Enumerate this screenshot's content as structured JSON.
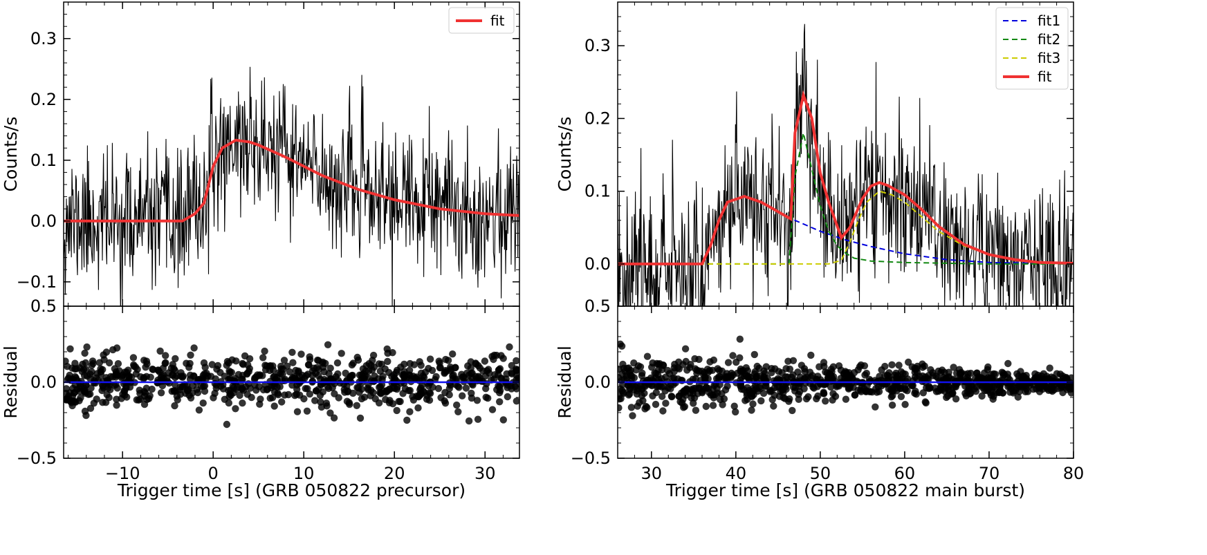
{
  "chart_data": [
    {
      "type": "line",
      "panel": "left-top",
      "title": "",
      "xlabel": "",
      "ylabel": "Counts/s",
      "xlim": [
        -16.5,
        33.8
      ],
      "ylim": [
        -0.14,
        0.36
      ],
      "xticks": [
        -10,
        0,
        10,
        20,
        30
      ],
      "yticks": [
        -0.1,
        0.0,
        0.1,
        0.2,
        0.3
      ],
      "ytick_labels": [
        "−0.1",
        "0.0",
        "0.1",
        "0.2",
        "0.3"
      ],
      "legend": {
        "placement": "top-right",
        "entries": [
          "fit"
        ]
      },
      "series": [
        {
          "name": "data",
          "style": "line",
          "color": "#000000",
          "envelope": {
            "x": [
              -16.5,
              -10,
              -4,
              -3.4,
              -1,
              0,
              1,
              2.5,
              5,
              8,
              12,
              16,
              20,
              25,
              30,
              33.8
            ],
            "y": [
              0,
              0,
              0,
              0,
              0.03,
              0.09,
              0.12,
              0.133,
              0.125,
              0.105,
              0.075,
              0.052,
              0.035,
              0.022,
              0.014,
              0.01
            ]
          },
          "noise_sd": 0.055
        },
        {
          "name": "fit",
          "style": "line",
          "color": "#f03232",
          "x": [
            -16.5,
            -10,
            -4,
            -3.4,
            -2,
            -1,
            0,
            1,
            2.5,
            4,
            5,
            8,
            12,
            16,
            20,
            25,
            30,
            33.8
          ],
          "y": [
            0,
            0,
            0,
            0,
            0.012,
            0.03,
            0.09,
            0.12,
            0.133,
            0.13,
            0.125,
            0.105,
            0.075,
            0.052,
            0.035,
            0.02,
            0.012,
            0.009
          ]
        }
      ]
    },
    {
      "type": "scatter",
      "panel": "left-bottom",
      "xlabel": "Trigger time [s] (GRB 050822 precursor)",
      "ylabel": "Residual",
      "xlim": [
        -16.5,
        33.8
      ],
      "ylim": [
        -0.5,
        0.5
      ],
      "xticks": [
        -10,
        0,
        10,
        20,
        30
      ],
      "xtick_labels": [
        "−10",
        "0",
        "10",
        "20",
        "30"
      ],
      "yticks": [
        -0.5,
        0.0,
        0.5
      ],
      "ytick_labels": [
        "−0.5",
        "0.0",
        "0.5"
      ],
      "series": [
        {
          "name": "residual",
          "style": "scatter",
          "color": "#000000",
          "n_points": 800,
          "x_range": [
            -16.5,
            33.8
          ],
          "spread": 0.085
        },
        {
          "name": "zero line",
          "style": "line",
          "color": "#1111ee",
          "x": [
            -16.5,
            33.8
          ],
          "y": [
            0,
            0
          ]
        }
      ]
    },
    {
      "type": "line",
      "panel": "right-top",
      "title": "",
      "xlabel": "",
      "ylabel": "Counts/s",
      "xlim": [
        26,
        80
      ],
      "ylim": [
        -0.058,
        0.36
      ],
      "yticks": [
        0.0,
        0.1,
        0.2,
        0.3
      ],
      "ytick_labels": [
        "0.0",
        "0.1",
        "0.2",
        "0.3"
      ],
      "legend": {
        "placement": "top-right",
        "entries": [
          "fit1",
          "fit2",
          "fit3",
          "fit"
        ]
      },
      "series": [
        {
          "name": "data",
          "style": "line",
          "color": "#000000",
          "envelope": {
            "x": [
              26,
              35,
              36,
              38,
              41,
              44,
              46.5,
              47.5,
              48,
              49,
              50,
              51,
              52.5,
              54,
              56,
              57,
              58,
              60,
              63,
              66,
              70,
              75,
              80
            ],
            "y": [
              0,
              0,
              0,
              0.06,
              0.093,
              0.08,
              0.065,
              0.21,
              0.25,
              0.16,
              0.1,
              0.06,
              0.04,
              0.07,
              0.105,
              0.112,
              0.108,
              0.09,
              0.06,
              0.035,
              0.015,
              0.005,
              0.002
            ]
          },
          "noise_sd": 0.055
        },
        {
          "name": "fit1",
          "style": "dashed",
          "color": "#0000dd",
          "x": [
            26,
            36,
            37,
            38,
            39,
            41,
            43,
            45,
            47,
            50,
            53,
            56,
            60,
            65,
            70,
            75,
            80
          ],
          "y": [
            0,
            0,
            0.025,
            0.06,
            0.085,
            0.093,
            0.085,
            0.072,
            0.06,
            0.045,
            0.033,
            0.024,
            0.014,
            0.006,
            0.002,
            0.001,
            0
          ]
        },
        {
          "name": "fit2",
          "style": "dashed",
          "color": "#118811",
          "x": [
            26,
            46.3,
            47,
            48,
            49,
            50,
            51,
            52,
            53,
            54,
            56,
            60,
            65,
            70,
            80
          ],
          "y": [
            0,
            0,
            0.12,
            0.18,
            0.13,
            0.08,
            0.045,
            0.025,
            0.015,
            0.008,
            0.004,
            0.002,
            0.001,
            0,
            0
          ]
        },
        {
          "name": "fit3",
          "style": "dashed",
          "color": "#cccc00",
          "x": [
            26,
            51,
            52.5,
            53.5,
            54.5,
            55.5,
            57,
            58.5,
            60,
            62,
            64,
            67,
            70,
            73,
            76,
            80
          ],
          "y": [
            0,
            0,
            0.005,
            0.03,
            0.06,
            0.085,
            0.1,
            0.095,
            0.085,
            0.065,
            0.045,
            0.025,
            0.013,
            0.006,
            0.002,
            0
          ]
        },
        {
          "name": "fit",
          "style": "line",
          "color": "#f03232",
          "x": [
            26,
            36,
            37,
            38,
            39,
            41,
            43,
            45,
            46.5,
            47,
            48,
            49,
            50,
            51,
            52.5,
            53.5,
            55,
            56,
            57,
            58,
            60,
            62,
            64,
            67,
            70,
            73,
            76,
            80
          ],
          "y": [
            0,
            0,
            0.025,
            0.06,
            0.085,
            0.093,
            0.085,
            0.072,
            0.062,
            0.18,
            0.232,
            0.2,
            0.125,
            0.085,
            0.036,
            0.05,
            0.09,
            0.107,
            0.112,
            0.108,
            0.095,
            0.075,
            0.052,
            0.027,
            0.013,
            0.006,
            0.002,
            0.001
          ]
        }
      ]
    },
    {
      "type": "scatter",
      "panel": "right-bottom",
      "xlabel": "Trigger time [s] (GRB 050822 main burst)",
      "ylabel": "Residual",
      "xlim": [
        26,
        80
      ],
      "ylim": [
        -0.5,
        0.5
      ],
      "xticks": [
        30,
        40,
        50,
        60,
        70,
        80
      ],
      "xtick_labels": [
        "30",
        "40",
        "50",
        "60",
        "70",
        "80"
      ],
      "yticks": [
        -0.5,
        0.0,
        0.5
      ],
      "ytick_labels": [
        "−0.5",
        "0.0",
        "0.5"
      ],
      "series": [
        {
          "name": "residual",
          "style": "scatter",
          "color": "#000000",
          "n_points": 900,
          "x_range": [
            26,
            80
          ],
          "spread_start": 0.09,
          "spread_end": 0.035
        },
        {
          "name": "zero line",
          "style": "line",
          "color": "#1111ee",
          "x": [
            26,
            80
          ],
          "y": [
            0,
            0
          ]
        }
      ]
    }
  ]
}
